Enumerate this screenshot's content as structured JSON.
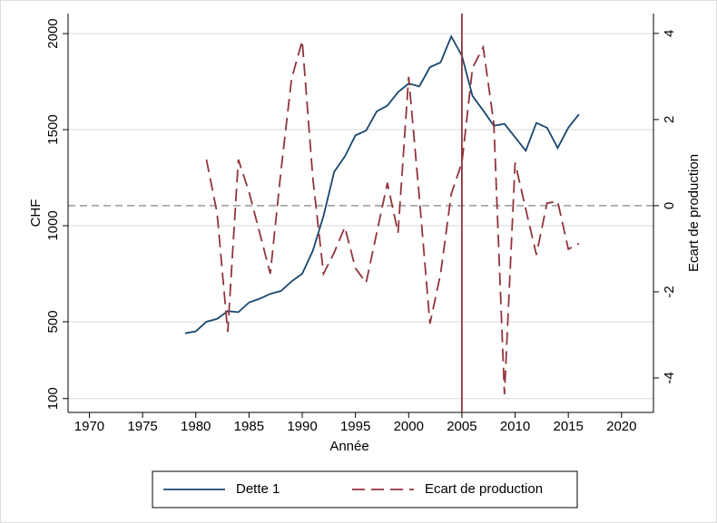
{
  "chart_data": {
    "type": "line",
    "xlabel": "Année",
    "ylabel": "CHF",
    "y2label": "Ecart de production",
    "xlim": [
      1968,
      2023
    ],
    "xticks": [
      1970,
      1975,
      1980,
      1985,
      1990,
      1995,
      2000,
      2005,
      2010,
      2015,
      2020
    ],
    "ylim": [
      28,
      2104
    ],
    "yticks": [
      100,
      500,
      1000,
      1500,
      2000
    ],
    "y2lim": [
      -4.8,
      4.46
    ],
    "y2ticks": [
      -4,
      -2,
      0,
      2,
      4
    ],
    "grid": true,
    "vline": 2005,
    "vline_color": "#90353b",
    "hline_y2": 0,
    "legend": "bottom",
    "series": [
      {
        "name": "Dette 1",
        "color": "#1a476f",
        "dash": "solid",
        "x": [
          1979,
          1980,
          1981,
          1982,
          1983,
          1984,
          1985,
          1986,
          1987,
          1988,
          1989,
          1990,
          1991,
          1992,
          1993,
          1994,
          1995,
          1996,
          1997,
          1998,
          1999,
          2000,
          2001,
          2002,
          2003,
          2004,
          2005,
          2006,
          2007,
          2008,
          2009,
          2010,
          2011,
          2012,
          2013,
          2014,
          2015,
          2016
        ],
        "values": [
          440,
          450,
          500,
          515,
          555,
          550,
          600,
          620,
          645,
          660,
          710,
          750,
          870,
          1050,
          1280,
          1360,
          1470,
          1495,
          1595,
          1625,
          1695,
          1740,
          1725,
          1825,
          1850,
          1985,
          1885,
          1675,
          1600,
          1520,
          1530,
          1460,
          1390,
          1535,
          1510,
          1405,
          1510,
          1580
        ]
      },
      {
        "name": "Ecart de production",
        "color": "#90353b",
        "dash": "dashed",
        "axis": "y2",
        "x": [
          1981,
          1982,
          1983,
          1984,
          1985,
          1986,
          1987,
          1988,
          1989,
          1990,
          1991,
          1992,
          1993,
          1994,
          1995,
          1996,
          1997,
          1998,
          1999,
          2000,
          2001,
          2002,
          2003,
          2004,
          2005,
          2006,
          2007,
          2008,
          2009,
          2010,
          2011,
          2012,
          2013,
          2014,
          2015,
          2016
        ],
        "values": [
          1.07,
          -0.17,
          -2.93,
          1.07,
          0.32,
          -0.63,
          -1.58,
          0.8,
          2.95,
          3.83,
          0.63,
          -1.58,
          -1.09,
          -0.5,
          -1.45,
          -1.79,
          -0.63,
          0.53,
          -0.63,
          2.99,
          0.2,
          -2.74,
          -1.58,
          0.27,
          1.0,
          3.2,
          3.68,
          1.92,
          -4.38,
          1.0,
          -0.08,
          -1.14,
          0.06,
          0.1,
          -1.01,
          -0.88
        ]
      }
    ]
  }
}
